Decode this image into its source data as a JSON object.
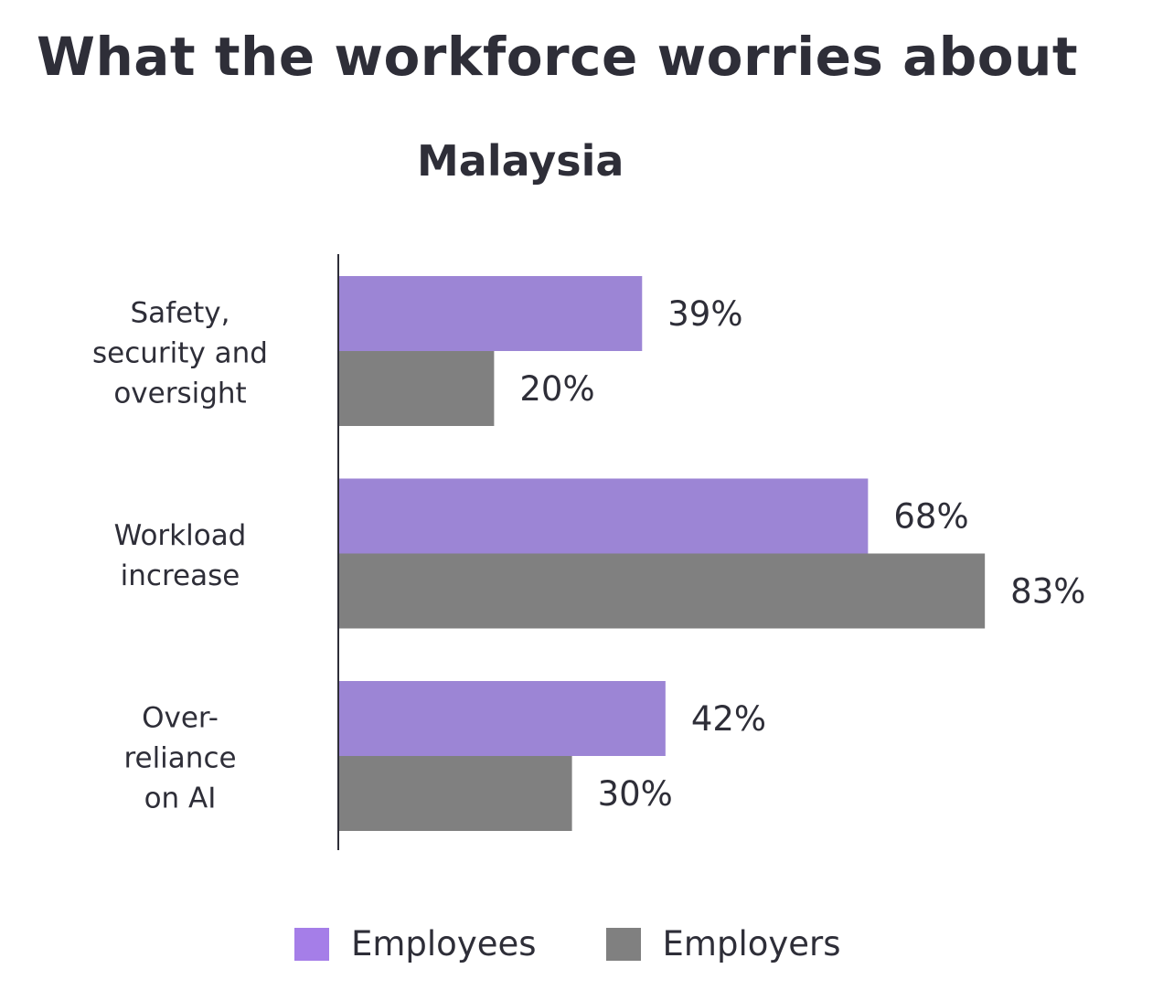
{
  "page": {
    "title": "What the workforce worries about"
  },
  "chart_data": {
    "type": "bar",
    "orientation": "horizontal",
    "title": "Malaysia",
    "categories": [
      [
        "Safety,",
        "security and",
        "oversight"
      ],
      [
        "Workload",
        "increase"
      ],
      [
        "Over-",
        "reliance",
        "on AI"
      ]
    ],
    "series": [
      {
        "name": "Employees",
        "color": "#9c85d5",
        "values": [
          39,
          68,
          42
        ],
        "labels": [
          "39%",
          "68%",
          "42%"
        ]
      },
      {
        "name": "Employers",
        "color": "#808080",
        "values": [
          20,
          83,
          30
        ],
        "labels": [
          "20%",
          "83%",
          "30%"
        ]
      }
    ],
    "xlim": [
      0,
      100
    ],
    "grid": false,
    "legend_position": "bottom"
  },
  "legend": {
    "items": [
      {
        "label": "Employees",
        "color": "#a57ee8"
      },
      {
        "label": "Employers",
        "color": "#808080"
      }
    ]
  }
}
